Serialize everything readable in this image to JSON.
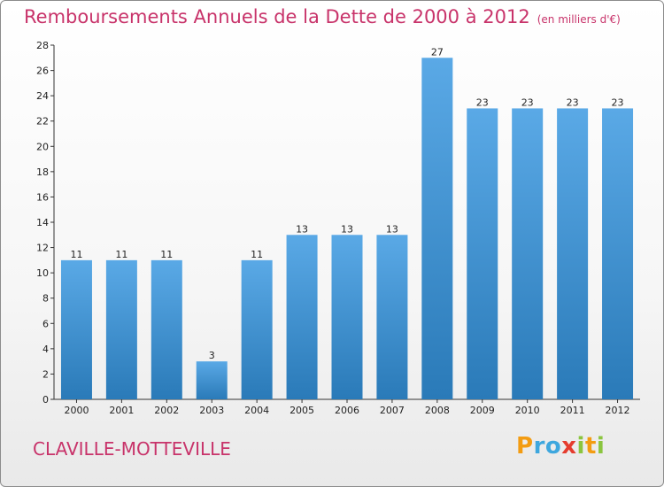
{
  "chart_data": {
    "type": "bar",
    "title": "Remboursements Annuels de la Dette de 2000 à 2012",
    "subtitle": "(en milliers d'€)",
    "categories": [
      "2000",
      "2001",
      "2002",
      "2003",
      "2004",
      "2005",
      "2006",
      "2007",
      "2008",
      "2009",
      "2010",
      "2011",
      "2012"
    ],
    "values": [
      11,
      11,
      11,
      3,
      11,
      13,
      13,
      13,
      27,
      23,
      23,
      23,
      23
    ],
    "ylim": [
      0,
      28
    ],
    "yticks": [
      0,
      2,
      4,
      6,
      8,
      10,
      12,
      14,
      16,
      18,
      20,
      22,
      24,
      26,
      28
    ],
    "grid": false,
    "bar_color_top": "#5aa9e6",
    "bar_color_bottom": "#2a7ab8",
    "xlabel": "",
    "ylabel": ""
  },
  "footer": {
    "city": "CLAVILLE-MOTTEVILLE",
    "logo_letters": [
      "P",
      "r",
      "o",
      "x",
      "i",
      "t",
      "i"
    ],
    "logo_colors": [
      "#f39c12",
      "#3ea7de",
      "#3ea7de",
      "#e53c2e",
      "#8bc53f",
      "#f39c12",
      "#8bc53f"
    ]
  },
  "colors": {
    "accent": "#c8336a",
    "axis": "#333333"
  }
}
